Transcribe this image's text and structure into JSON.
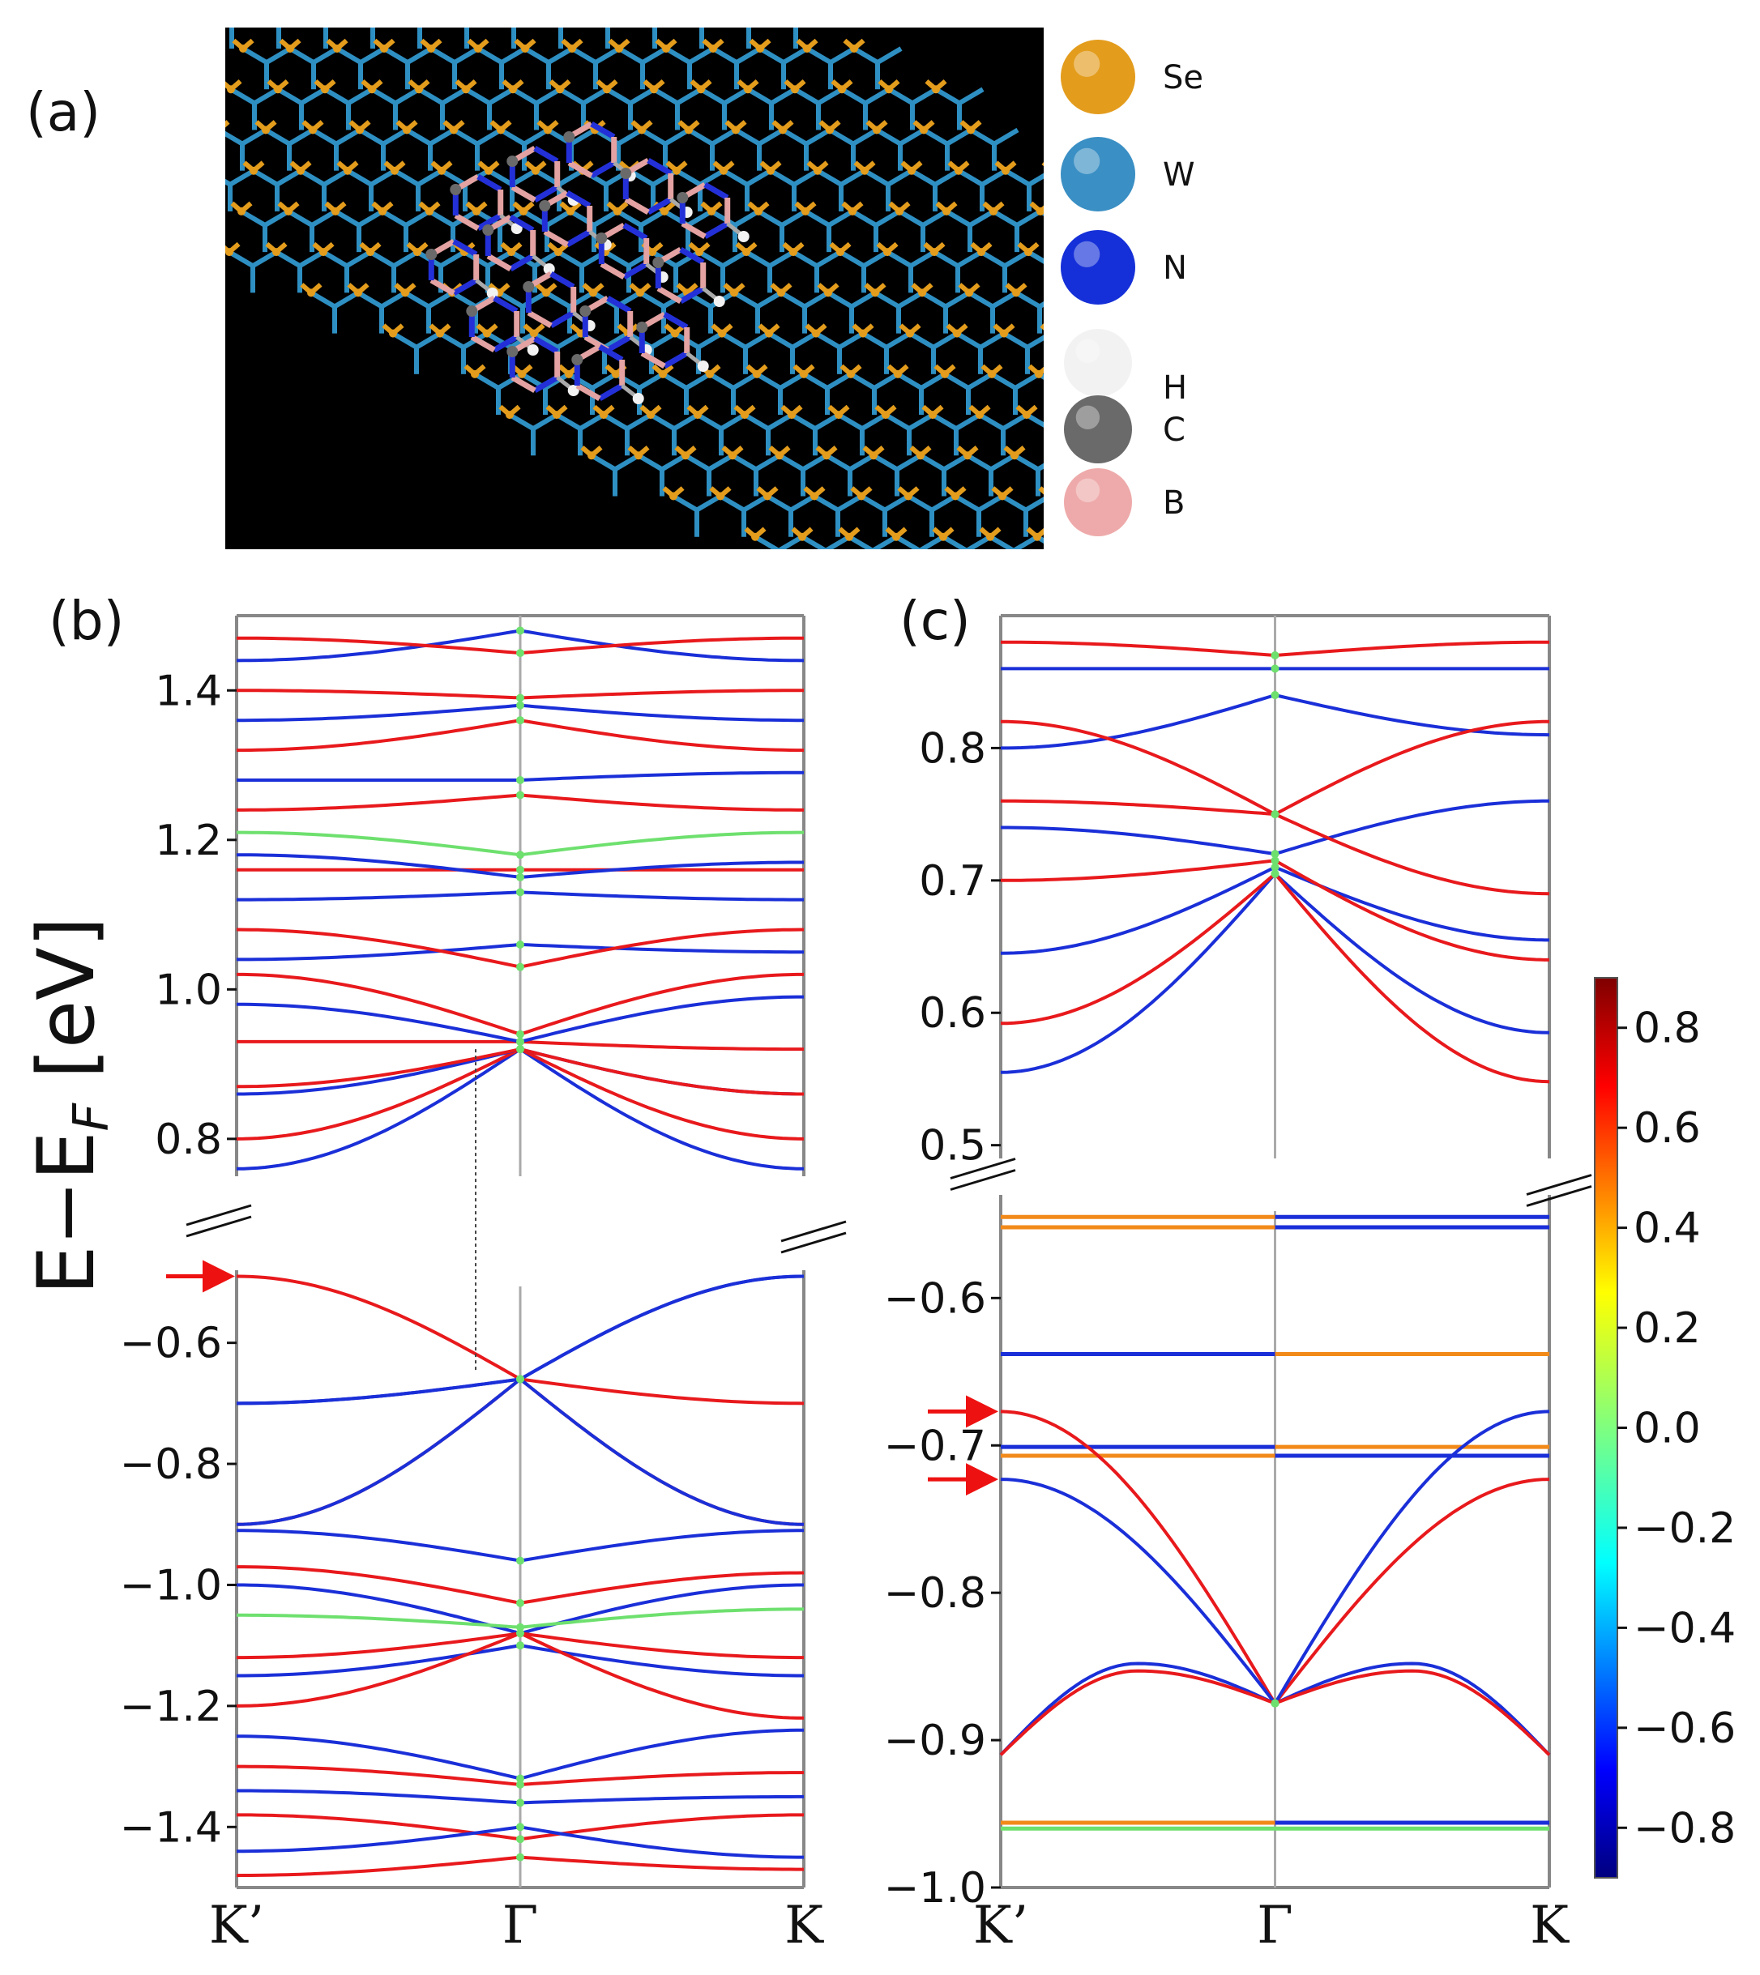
{
  "panels": {
    "a": "(a)",
    "b": "(b)",
    "c": "(c)"
  },
  "legend_atoms": [
    {
      "symbol": "Se",
      "color": "#e39c1c"
    },
    {
      "symbol": "W",
      "color": "#3a8fc4"
    },
    {
      "symbol": "N",
      "color": "#1530d8"
    },
    {
      "symbol": "H",
      "color": "#f2f2f2"
    },
    {
      "symbol": "C",
      "color": "#6a6a6a"
    },
    {
      "symbol": "B",
      "color": "#eeaaaa"
    }
  ],
  "chart_data": [
    {
      "id": "b",
      "type": "line",
      "ylabel": "E−E",
      "ylabel_sub": "F",
      "ylabel_unit": " [eV]",
      "x_ticks": [
        "K’",
        "Γ",
        "K"
      ],
      "upper": {
        "ylim": [
          0.75,
          1.5
        ],
        "yticks": [
          "0.8",
          "1.0",
          "1.2",
          "1.4"
        ],
        "ytick_values": [
          0.8,
          1.0,
          1.2,
          1.4
        ]
      },
      "lower": {
        "ylim": [
          -1.5,
          -0.48
        ],
        "yticks": [
          "−0.6",
          "−0.8",
          "−1.0",
          "−1.2",
          "−1.4"
        ],
        "ytick_values": [
          -0.6,
          -0.8,
          -1.0,
          -1.2,
          -1.4
        ]
      },
      "gamma_crossing_upper": 0.92,
      "gamma_crossing_lower": -0.66,
      "valence_top": -0.49,
      "bands_lower": [
        {
          "left": -0.49,
          "right": -0.7,
          "gamma": -0.66,
          "color": "red"
        },
        {
          "left": -0.7,
          "right": -0.49,
          "gamma": -0.66,
          "color": "blue"
        },
        {
          "left": -0.7,
          "right": -0.49,
          "gamma": -0.66,
          "color": "blue"
        },
        {
          "left": -0.9,
          "right": -0.9,
          "gamma": -0.66,
          "color": "red"
        },
        {
          "left": -0.9,
          "right": -0.9,
          "gamma": -0.66,
          "color": "blue"
        },
        {
          "left": -0.91,
          "right": -0.91,
          "gamma": -0.96,
          "color": "blue"
        },
        {
          "left": -0.97,
          "right": -0.98,
          "gamma": -1.03,
          "color": "red"
        },
        {
          "left": -1.0,
          "right": -1.0,
          "gamma": -1.08,
          "color": "blue"
        },
        {
          "left": -1.05,
          "right": -1.04,
          "gamma": -1.07,
          "color": "green"
        },
        {
          "left": -1.12,
          "right": -1.12,
          "gamma": -1.08,
          "color": "red"
        },
        {
          "left": -1.15,
          "right": -1.15,
          "gamma": -1.1,
          "color": "blue"
        },
        {
          "left": -1.2,
          "right": -1.22,
          "gamma": -1.08,
          "color": "red"
        },
        {
          "left": -1.25,
          "right": -1.24,
          "gamma": -1.32,
          "color": "blue"
        },
        {
          "left": -1.3,
          "right": -1.31,
          "gamma": -1.33,
          "color": "red"
        },
        {
          "left": -1.34,
          "right": -1.35,
          "gamma": -1.36,
          "color": "blue"
        },
        {
          "left": -1.38,
          "right": -1.38,
          "gamma": -1.42,
          "color": "red"
        },
        {
          "left": -1.44,
          "right": -1.45,
          "gamma": -1.4,
          "color": "blue"
        },
        {
          "left": -1.48,
          "right": -1.47,
          "gamma": -1.45,
          "color": "red"
        }
      ],
      "bands_upper": [
        {
          "left": 0.76,
          "right": 0.76,
          "gamma": 0.92,
          "color": "blue"
        },
        {
          "left": 0.8,
          "right": 0.8,
          "gamma": 0.92,
          "color": "red"
        },
        {
          "left": 0.86,
          "right": 0.86,
          "gamma": 0.92,
          "color": "blue"
        },
        {
          "left": 0.87,
          "right": 0.86,
          "gamma": 0.92,
          "color": "red"
        },
        {
          "left": 0.93,
          "right": 0.92,
          "gamma": 0.93,
          "color": "red"
        },
        {
          "left": 0.98,
          "right": 0.99,
          "gamma": 0.93,
          "color": "blue"
        },
        {
          "left": 1.02,
          "right": 1.02,
          "gamma": 0.94,
          "color": "red"
        },
        {
          "left": 1.04,
          "right": 1.05,
          "gamma": 1.06,
          "color": "blue"
        },
        {
          "left": 1.08,
          "right": 1.08,
          "gamma": 1.03,
          "color": "red"
        },
        {
          "left": 1.12,
          "right": 1.12,
          "gamma": 1.13,
          "color": "blue"
        },
        {
          "left": 1.16,
          "right": 1.16,
          "gamma": 1.16,
          "color": "red"
        },
        {
          "left": 1.18,
          "right": 1.17,
          "gamma": 1.15,
          "color": "blue"
        },
        {
          "left": 1.21,
          "right": 1.21,
          "gamma": 1.18,
          "color": "green"
        },
        {
          "left": 1.24,
          "right": 1.24,
          "gamma": 1.26,
          "color": "red"
        },
        {
          "left": 1.28,
          "right": 1.29,
          "gamma": 1.28,
          "color": "blue"
        },
        {
          "left": 1.32,
          "right": 1.32,
          "gamma": 1.36,
          "color": "red"
        },
        {
          "left": 1.36,
          "right": 1.36,
          "gamma": 1.38,
          "color": "blue"
        },
        {
          "left": 1.4,
          "right": 1.4,
          "gamma": 1.39,
          "color": "red"
        },
        {
          "left": 1.44,
          "right": 1.44,
          "gamma": 1.48,
          "color": "blue"
        },
        {
          "left": 1.47,
          "right": 1.47,
          "gamma": 1.45,
          "color": "red"
        }
      ]
    },
    {
      "id": "c",
      "type": "line",
      "x_ticks": [
        "K’",
        "Γ",
        "K"
      ],
      "upper": {
        "ylim": [
          0.49,
          0.9
        ],
        "yticks": [
          "0.5",
          "0.6",
          "0.7",
          "0.8"
        ],
        "ytick_values": [
          0.5,
          0.6,
          0.7,
          0.8
        ]
      },
      "lower": {
        "ylim": [
          -1.0,
          -0.53
        ],
        "yticks": [
          "−0.6",
          "−0.7",
          "−0.8",
          "−0.9",
          "−1.0"
        ],
        "ytick_values": [
          -0.6,
          -0.7,
          -0.8,
          -0.9,
          -1.0
        ]
      },
      "flat_bands": [
        {
          "e": -0.545,
          "left_color": "orange",
          "right_color": "blue"
        },
        {
          "e": -0.552,
          "left_color": "orange",
          "right_color": "blue"
        },
        {
          "e": -0.638,
          "left_color": "blue",
          "right_color": "orange"
        },
        {
          "e": -0.701,
          "left_color": "blue",
          "right_color": "orange"
        },
        {
          "e": -0.707,
          "left_color": "orange",
          "right_color": "blue"
        },
        {
          "e": -0.956,
          "left_color": "orange",
          "right_color": "blue"
        },
        {
          "e": -0.96,
          "left_color": "green",
          "right_color": "green"
        }
      ],
      "dispersive_lower": [
        {
          "left": -0.677,
          "right": -0.723,
          "gamma": -0.875,
          "color": "red"
        },
        {
          "left": -0.723,
          "right": -0.677,
          "gamma": -0.875,
          "color": "blue"
        },
        {
          "left": -0.91,
          "right": -0.91,
          "gamma": -0.875,
          "color": "blue",
          "mid": -0.848
        },
        {
          "left": -0.91,
          "right": -0.91,
          "gamma": -0.875,
          "color": "red",
          "mid": -0.853
        }
      ],
      "dispersive_upper": [
        {
          "left": 0.555,
          "right": 0.585,
          "gamma": 0.705,
          "color": "blue"
        },
        {
          "left": 0.592,
          "right": 0.548,
          "gamma": 0.705,
          "color": "red"
        },
        {
          "left": 0.645,
          "right": 0.655,
          "gamma": 0.71,
          "color": "blue"
        },
        {
          "left": 0.7,
          "right": 0.64,
          "gamma": 0.715,
          "color": "red"
        },
        {
          "left": 0.74,
          "right": 0.76,
          "gamma": 0.72,
          "color": "blue"
        },
        {
          "left": 0.76,
          "right": 0.69,
          "gamma": 0.75,
          "color": "red"
        },
        {
          "left": 0.8,
          "right": 0.81,
          "gamma": 0.84,
          "color": "blue"
        },
        {
          "left": 0.82,
          "right": 0.82,
          "gamma": 0.75,
          "color": "red"
        },
        {
          "left": 0.86,
          "right": 0.86,
          "gamma": 0.86,
          "color": "blue"
        },
        {
          "left": 0.88,
          "right": 0.88,
          "gamma": 0.87,
          "color": "red"
        }
      ]
    }
  ],
  "colorbar": {
    "range": [
      -0.9,
      0.9
    ],
    "ticks": [
      "0.8",
      "0.6",
      "0.4",
      "0.2",
      "0.0",
      "−0.2",
      "−0.4",
      "−0.6",
      "−0.8"
    ],
    "tick_values": [
      0.8,
      0.6,
      0.4,
      0.2,
      0.0,
      -0.2,
      -0.4,
      -0.6,
      -0.8
    ],
    "colormap": "jet"
  }
}
